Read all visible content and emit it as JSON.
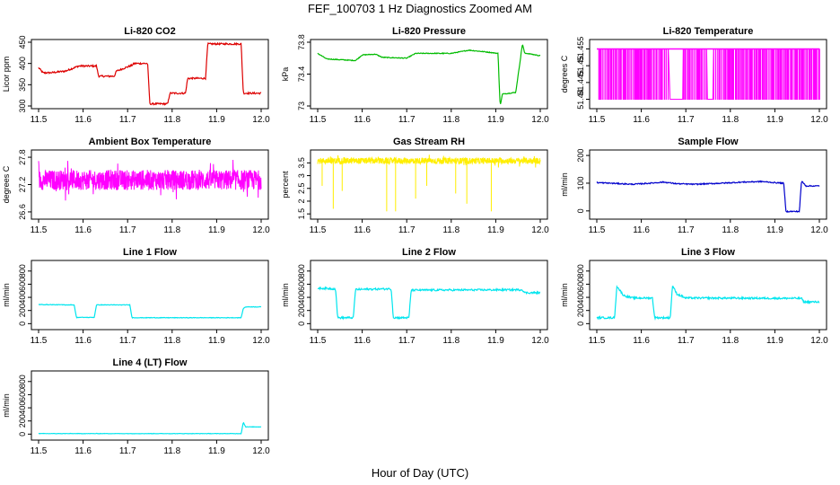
{
  "figure": {
    "title": "FEF_100703  1 Hz Diagnostics Zoomed AM",
    "xlabel": "Hour of Day (UTC)"
  },
  "chart_data": [
    {
      "id": "p1",
      "type": "line",
      "title": "Li-820 CO2",
      "ylabel": "Licor ppm",
      "color": "#dd0000",
      "xlim": [
        11.5,
        12.0
      ],
      "ylim": [
        300,
        450
      ],
      "yticks": [
        300,
        350,
        400,
        450
      ],
      "xticks": [
        11.5,
        11.6,
        11.7,
        11.8,
        11.9,
        12.0
      ],
      "x": [
        11.5,
        11.51,
        11.525,
        11.56,
        11.585,
        11.59,
        11.63,
        11.635,
        11.67,
        11.675,
        11.71,
        11.715,
        11.745,
        11.75,
        11.79,
        11.795,
        11.83,
        11.835,
        11.875,
        11.88,
        11.955,
        11.96,
        12.0
      ],
      "y": [
        390,
        378,
        378,
        382,
        392,
        394,
        394,
        370,
        370,
        382,
        396,
        400,
        400,
        305,
        305,
        330,
        330,
        365,
        365,
        446,
        446,
        330,
        330
      ],
      "noise": 2
    },
    {
      "id": "p2",
      "type": "line",
      "title": "Li-820 Pressure",
      "ylabel": "kPa",
      "color": "#00bb00",
      "xlim": [
        11.5,
        12.0
      ],
      "ylim": [
        73.0,
        73.8
      ],
      "yticks": [
        73.0,
        73.4,
        73.8
      ],
      "xticks": [
        11.5,
        11.6,
        11.7,
        11.8,
        11.9,
        12.0
      ],
      "x": [
        11.5,
        11.52,
        11.585,
        11.6,
        11.63,
        11.645,
        11.7,
        11.72,
        11.8,
        11.84,
        11.875,
        11.905,
        11.91,
        11.915,
        11.945,
        11.96,
        11.965,
        11.97,
        12.0
      ],
      "y": [
        73.66,
        73.59,
        73.57,
        73.64,
        73.65,
        73.61,
        73.6,
        73.66,
        73.66,
        73.7,
        73.68,
        73.66,
        73.0,
        73.15,
        73.17,
        73.78,
        73.66,
        73.66,
        73.63
      ],
      "noise": 0.005
    },
    {
      "id": "p3",
      "type": "step",
      "title": "Li-820 Temperature",
      "ylabel": "degrees C",
      "color": "#ff00ff",
      "xlim": [
        11.5,
        12.0
      ],
      "ylim": [
        51.438,
        51.457
      ],
      "yticks": [
        51.44,
        51.445,
        51.45,
        51.455
      ],
      "xticks": [
        11.5,
        11.6,
        11.7,
        11.8,
        11.9,
        12.0
      ],
      "levels": [
        51.44,
        51.455
      ],
      "gaps": [
        [
          11.66,
          11.69
        ],
        [
          11.745,
          11.76
        ]
      ]
    },
    {
      "id": "p4",
      "type": "noise",
      "title": "Ambient Box Temperature",
      "ylabel": "degrees C",
      "color": "#ff00ff",
      "xlim": [
        11.5,
        12.0
      ],
      "ylim": [
        26.5,
        27.9
      ],
      "yticks": [
        26.6,
        27.2,
        27.8
      ],
      "xticks": [
        11.5,
        11.6,
        11.7,
        11.8,
        11.9,
        12.0
      ],
      "base": 27.3,
      "spread": 0.22,
      "min": 26.6,
      "max": 27.8
    },
    {
      "id": "p5",
      "type": "noise",
      "title": "Gas Stream RH",
      "ylabel": "percent",
      "color": "#ffee00",
      "xlim": [
        11.5,
        12.0
      ],
      "ylim": [
        1.4,
        3.9
      ],
      "yticks": [
        1.5,
        2.0,
        2.5,
        3.0,
        3.5
      ],
      "xticks": [
        11.5,
        11.6,
        11.7,
        11.8,
        11.9,
        12.0
      ],
      "base": 3.58,
      "spread": 0.12,
      "min": 1.6,
      "max": 3.9,
      "spikes_x": [
        11.51,
        11.535,
        11.555,
        11.655,
        11.675,
        11.72,
        11.745,
        11.81,
        11.835,
        11.89
      ],
      "spikes_y": [
        2.6,
        1.7,
        2.4,
        1.6,
        1.6,
        2.1,
        2.6,
        2.3,
        1.9,
        1.6
      ]
    },
    {
      "id": "p6",
      "type": "line",
      "title": "Sample Flow",
      "ylabel": "ml/min",
      "color": "#0000cc",
      "xlim": [
        11.5,
        12.0
      ],
      "ylim": [
        -20,
        210
      ],
      "yticks": [
        0,
        100,
        200
      ],
      "xticks": [
        11.5,
        11.6,
        11.7,
        11.8,
        11.9,
        12.0
      ],
      "x": [
        11.5,
        11.53,
        11.58,
        11.62,
        11.65,
        11.68,
        11.72,
        11.75,
        11.78,
        11.83,
        11.87,
        11.9,
        11.92,
        11.925,
        11.955,
        11.96,
        11.97,
        12.0
      ],
      "y": [
        102,
        100,
        96,
        100,
        104,
        98,
        96,
        98,
        100,
        104,
        106,
        102,
        100,
        -2,
        -2,
        108,
        90,
        90
      ],
      "noise": 2
    },
    {
      "id": "p7",
      "type": "line",
      "title": "Line 1 Flow",
      "ylabel": "ml/min",
      "color": "#00e5ee",
      "xlim": [
        11.5,
        12.0
      ],
      "ylim": [
        -50,
        920
      ],
      "yticks": [
        0,
        200,
        400,
        600,
        800
      ],
      "xticks": [
        11.5,
        11.6,
        11.7,
        11.8,
        11.9,
        12.0
      ],
      "x": [
        11.5,
        11.58,
        11.585,
        11.625,
        11.63,
        11.705,
        11.71,
        11.955,
        11.96,
        11.965,
        12.0
      ],
      "y": [
        290,
        285,
        95,
        95,
        285,
        285,
        90,
        90,
        230,
        255,
        255
      ],
      "noise": 4
    },
    {
      "id": "p8",
      "type": "line",
      "title": "Line 2 Flow",
      "ylabel": "ml/min",
      "color": "#00e5ee",
      "xlim": [
        11.5,
        12.0
      ],
      "ylim": [
        -50,
        920
      ],
      "yticks": [
        0,
        200,
        400,
        600,
        800
      ],
      "xticks": [
        11.5,
        11.6,
        11.7,
        11.8,
        11.9,
        12.0
      ],
      "x": [
        11.5,
        11.54,
        11.545,
        11.58,
        11.585,
        11.665,
        11.67,
        11.705,
        11.71,
        11.96,
        11.965,
        12.0
      ],
      "y": [
        540,
        530,
        90,
        90,
        520,
        530,
        90,
        90,
        510,
        515,
        470,
        470
      ],
      "noise": 14
    },
    {
      "id": "p9",
      "type": "line",
      "title": "Line 3 Flow",
      "ylabel": "ml/min",
      "color": "#00e5ee",
      "xlim": [
        11.5,
        12.0
      ],
      "ylim": [
        -50,
        920
      ],
      "yticks": [
        0,
        200,
        400,
        600,
        800
      ],
      "xticks": [
        11.5,
        11.6,
        11.7,
        11.8,
        11.9,
        12.0
      ],
      "x": [
        11.5,
        11.54,
        11.545,
        11.56,
        11.58,
        11.625,
        11.63,
        11.665,
        11.67,
        11.68,
        11.7,
        11.96,
        11.965,
        12.0
      ],
      "y": [
        90,
        90,
        570,
        430,
        390,
        390,
        90,
        90,
        580,
        450,
        390,
        385,
        330,
        330
      ],
      "noise": 14
    },
    {
      "id": "p10",
      "type": "line",
      "title": "Line 4 (LT) Flow",
      "ylabel": "ml/min",
      "color": "#00e5ee",
      "xlim": [
        11.5,
        12.0
      ],
      "ylim": [
        -50,
        920
      ],
      "yticks": [
        0,
        200,
        400,
        600,
        800
      ],
      "xticks": [
        11.5,
        11.6,
        11.7,
        11.8,
        11.9,
        12.0
      ],
      "x": [
        11.5,
        11.955,
        11.96,
        11.965,
        11.97,
        12.0
      ],
      "y": [
        8,
        8,
        180,
        110,
        110,
        110
      ],
      "noise": 3
    }
  ]
}
